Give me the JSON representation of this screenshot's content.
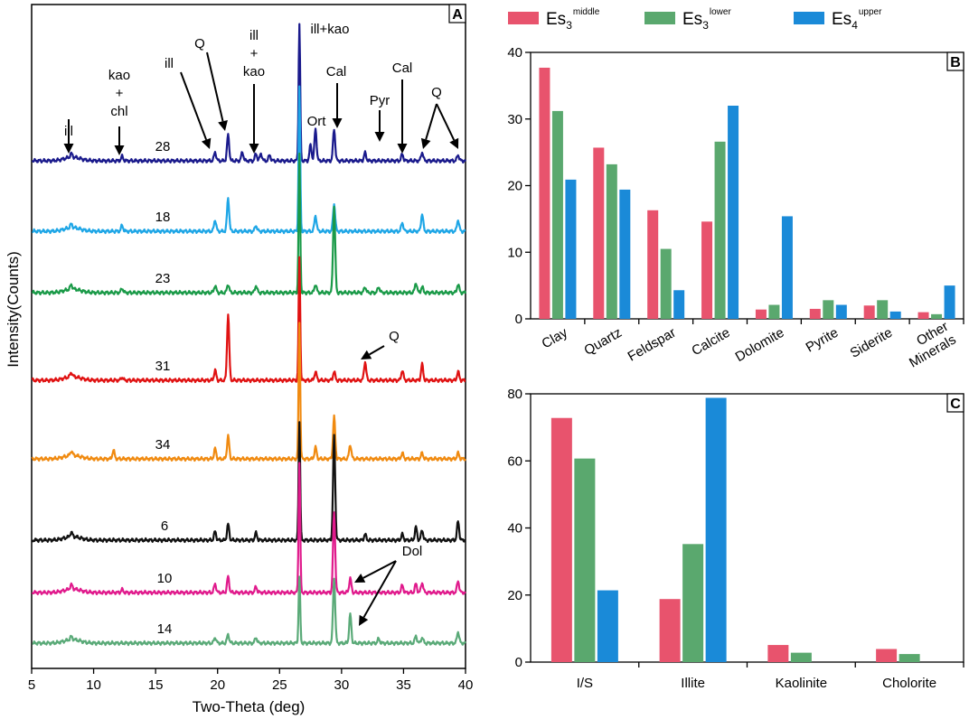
{
  "colors": {
    "es3_middle": "#e8536d",
    "es3_lower": "#5aa86e",
    "es4_upper": "#1a8ad8"
  },
  "legend": [
    {
      "base": "Es",
      "sub": "3",
      "sup": "middle",
      "color": "#e8536d"
    },
    {
      "base": "Es",
      "sub": "3",
      "sup": "lower",
      "color": "#5aa86e"
    },
    {
      "base": "Es",
      "sub": "4",
      "sup": "upper",
      "color": "#1a8ad8"
    }
  ],
  "chart_data": [
    {
      "panel": "A",
      "type": "line",
      "title": "",
      "xlabel": "Two-Theta (deg)",
      "ylabel": "Intensity(Counts)",
      "xlim": [
        5,
        40
      ],
      "xticks": [
        5,
        10,
        15,
        20,
        25,
        30,
        35,
        40
      ],
      "grid": false,
      "series": [
        {
          "name": "28",
          "color": "#1a1a8c",
          "peaks": [
            [
              8.2,
              0.25
            ],
            [
              12.3,
              0.3
            ],
            [
              19.8,
              0.6
            ],
            [
              20.85,
              1.8
            ],
            [
              22.0,
              0.6
            ],
            [
              23.1,
              0.5
            ],
            [
              23.5,
              0.5
            ],
            [
              24.2,
              0.4
            ],
            [
              26.6,
              9.5
            ],
            [
              27.5,
              1.1
            ],
            [
              27.9,
              2.2
            ],
            [
              29.4,
              2.2
            ],
            [
              31.9,
              0.55
            ],
            [
              34.9,
              0.45
            ],
            [
              36.5,
              0.6
            ],
            [
              39.4,
              0.4
            ]
          ]
        },
        {
          "name": "18",
          "color": "#1ea6e6",
          "peaks": [
            [
              8.2,
              0.25
            ],
            [
              12.3,
              0.4
            ],
            [
              19.8,
              0.8
            ],
            [
              20.85,
              2.3
            ],
            [
              23.1,
              0.4
            ],
            [
              26.6,
              10.0
            ],
            [
              27.9,
              1.1
            ],
            [
              29.4,
              1.9
            ],
            [
              34.9,
              0.6
            ],
            [
              36.5,
              1.2
            ],
            [
              39.4,
              0.8
            ]
          ]
        },
        {
          "name": "23",
          "color": "#1a9a48",
          "peaks": [
            [
              8.2,
              0.3
            ],
            [
              12.3,
              0.3
            ],
            [
              19.8,
              0.5
            ],
            [
              20.85,
              0.6
            ],
            [
              23.1,
              0.5
            ],
            [
              26.6,
              9.5
            ],
            [
              27.9,
              0.6
            ],
            [
              29.4,
              6.0
            ],
            [
              31.9,
              0.4
            ],
            [
              33.0,
              0.4
            ],
            [
              36.0,
              0.7
            ],
            [
              36.5,
              0.4
            ],
            [
              39.4,
              0.6
            ]
          ]
        },
        {
          "name": "31",
          "color": "#e01212",
          "peaks": [
            [
              8.2,
              0.3
            ],
            [
              12.3,
              0.2
            ],
            [
              19.8,
              0.7
            ],
            [
              20.85,
              4.6
            ],
            [
              26.6,
              8.5
            ],
            [
              27.9,
              0.6
            ],
            [
              29.4,
              0.6
            ],
            [
              31.9,
              1.3
            ],
            [
              34.9,
              0.7
            ],
            [
              36.5,
              1.1
            ],
            [
              39.4,
              0.6
            ]
          ]
        },
        {
          "name": "34",
          "color": "#f08a10",
          "peaks": [
            [
              8.2,
              0.3
            ],
            [
              11.6,
              0.6
            ],
            [
              19.8,
              0.7
            ],
            [
              20.85,
              1.6
            ],
            [
              26.6,
              9.5
            ],
            [
              27.9,
              0.8
            ],
            [
              29.4,
              2.9
            ],
            [
              30.7,
              1.0
            ],
            [
              34.9,
              0.4
            ],
            [
              36.5,
              0.4
            ],
            [
              39.4,
              0.4
            ]
          ]
        },
        {
          "name": "6",
          "color": "#111111",
          "peaks": [
            [
              8.2,
              0.3
            ],
            [
              19.8,
              0.6
            ],
            [
              20.85,
              1.1
            ],
            [
              23.1,
              0.5
            ],
            [
              26.6,
              8.2
            ],
            [
              29.4,
              7.2
            ],
            [
              31.9,
              0.4
            ],
            [
              34.9,
              0.4
            ],
            [
              36.0,
              0.9
            ],
            [
              36.5,
              0.7
            ],
            [
              39.4,
              1.3
            ]
          ]
        },
        {
          "name": "10",
          "color": "#e01a8c",
          "peaks": [
            [
              8.2,
              0.3
            ],
            [
              12.3,
              0.2
            ],
            [
              19.8,
              0.6
            ],
            [
              20.85,
              1.1
            ],
            [
              23.1,
              0.4
            ],
            [
              26.6,
              9.0
            ],
            [
              29.4,
              5.6
            ],
            [
              30.7,
              1.0
            ],
            [
              34.9,
              0.5
            ],
            [
              36.0,
              0.6
            ],
            [
              36.5,
              0.7
            ],
            [
              39.4,
              0.8
            ]
          ]
        },
        {
          "name": "14",
          "color": "#5aaa78",
          "peaks": [
            [
              8.2,
              0.2
            ],
            [
              19.8,
              0.4
            ],
            [
              20.85,
              0.6
            ],
            [
              23.1,
              0.4
            ],
            [
              26.6,
              4.6
            ],
            [
              29.4,
              4.5
            ],
            [
              30.7,
              2.0
            ],
            [
              33.0,
              0.3
            ],
            [
              36.0,
              0.5
            ],
            [
              36.5,
              0.4
            ],
            [
              39.4,
              0.8
            ]
          ]
        }
      ],
      "annotations": [
        {
          "lines": [
            "ill"
          ],
          "x": 8.2
        },
        {
          "lines": [
            "kao",
            "+",
            "chl"
          ],
          "x": 12.3
        },
        {
          "lines": [
            "ill"
          ],
          "x": 19.6
        },
        {
          "lines": [
            "Q"
          ],
          "x": 20.85
        },
        {
          "lines": [
            "ill",
            "+",
            "kao"
          ],
          "x": 23.1
        },
        {
          "lines": [
            "ill+kao"
          ],
          "x": 26.6
        },
        {
          "lines": [
            "Ort"
          ],
          "x": 27.9
        },
        {
          "lines": [
            "Cal"
          ],
          "x": 29.4
        },
        {
          "lines": [
            "Pyr"
          ],
          "x": 32.9
        },
        {
          "lines": [
            "Cal"
          ],
          "x": 34.9
        },
        {
          "lines": [
            "Q"
          ],
          "x": 36.5
        },
        {
          "lines": [
            "Q"
          ],
          "x": 31.9
        },
        {
          "lines": [
            "Dol"
          ],
          "x": 30.7
        }
      ]
    },
    {
      "panel": "B",
      "type": "bar",
      "categories": [
        "Clay",
        "Quartz",
        "Feldspar",
        "Calcite",
        "Dolomite",
        "Pyrite",
        "Siderite",
        "Other Minerals"
      ],
      "series": [
        {
          "name": "Es3 middle",
          "values": [
            37.7,
            25.7,
            16.3,
            14.6,
            1.4,
            1.5,
            2.0,
            1.0
          ]
        },
        {
          "name": "Es3 lower",
          "values": [
            31.2,
            23.2,
            10.5,
            26.6,
            2.1,
            2.8,
            2.8,
            0.7
          ]
        },
        {
          "name": "Es4 upper",
          "values": [
            20.9,
            19.4,
            4.3,
            32.0,
            15.4,
            2.1,
            1.1,
            5.0
          ]
        }
      ],
      "ylim": [
        0,
        40
      ],
      "yticks": [
        0,
        10,
        20,
        30,
        40
      ],
      "xlabel": "",
      "ylabel": ""
    },
    {
      "panel": "C",
      "type": "bar",
      "categories": [
        "I/S",
        "Illite",
        "Kaolinite",
        "Cholorite"
      ],
      "series": [
        {
          "name": "Es3 middle",
          "values": [
            72.8,
            18.8,
            5.1,
            3.9
          ]
        },
        {
          "name": "Es3 lower",
          "values": [
            60.7,
            35.2,
            2.8,
            2.4
          ]
        },
        {
          "name": "Es4 upper",
          "values": [
            21.4,
            78.8,
            0,
            0
          ]
        }
      ],
      "ylim": [
        0,
        80
      ],
      "yticks": [
        0,
        20,
        40,
        60,
        80
      ],
      "xlabel": "",
      "ylabel": ""
    }
  ]
}
